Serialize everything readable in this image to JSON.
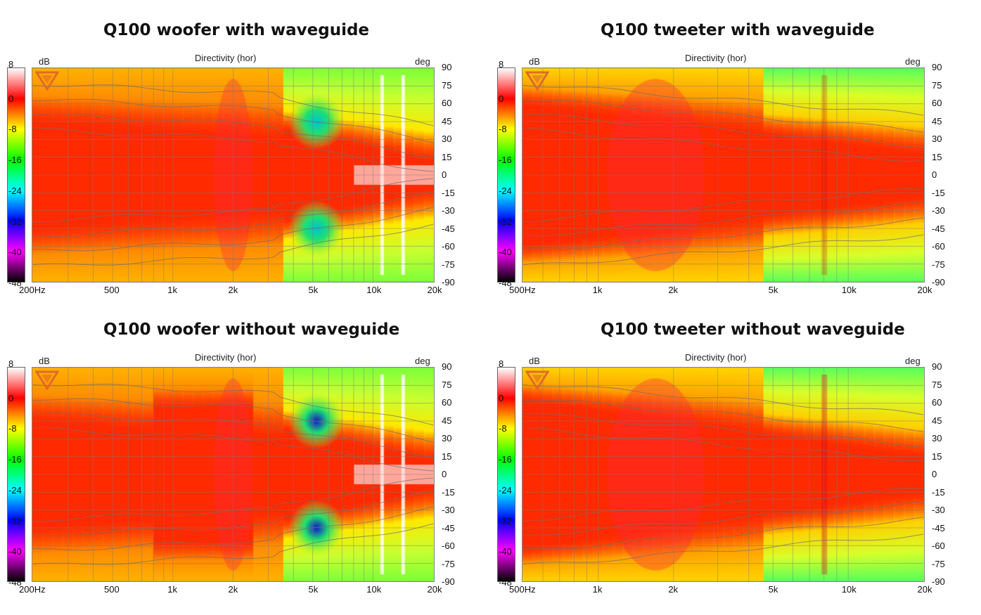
{
  "chart_data": [
    {
      "type": "heatmap",
      "title": "Q100 woofer with waveguide",
      "subtitle": "Directivity (hor)",
      "x_unit_label": "",
      "y_unit_label": "deg",
      "colorbar_label": "dB",
      "x_scale": "log",
      "x_range": [
        200,
        20000
      ],
      "x_ticks": [
        {
          "value": 200,
          "label": "200Hz"
        },
        {
          "value": 500,
          "label": "500"
        },
        {
          "value": 1000,
          "label": "1k"
        },
        {
          "value": 2000,
          "label": "2k"
        },
        {
          "value": 5000,
          "label": "5k"
        },
        {
          "value": 10000,
          "label": "10k"
        },
        {
          "value": 20000,
          "label": "20k"
        }
      ],
      "y_range": [
        -90,
        90
      ],
      "y_ticks": [
        "90",
        "75",
        "60",
        "45",
        "30",
        "15",
        "0",
        "-15",
        "-30",
        "-45",
        "-60",
        "-75",
        "-90"
      ],
      "colorbar_range": [
        -48,
        8
      ],
      "colorbar_ticks": [
        "8",
        "0",
        "-8",
        "-16",
        "-24",
        "-32",
        "-40",
        "-48"
      ],
      "grid": true,
      "driver": "woofer",
      "waveguide": true
    },
    {
      "type": "heatmap",
      "title": "Q100 tweeter with waveguide",
      "subtitle": "Directivity (hor)",
      "x_unit_label": "",
      "y_unit_label": "deg",
      "colorbar_label": "dB",
      "x_scale": "log",
      "x_range": [
        500,
        20000
      ],
      "x_ticks": [
        {
          "value": 500,
          "label": "500Hz"
        },
        {
          "value": 1000,
          "label": "1k"
        },
        {
          "value": 2000,
          "label": "2k"
        },
        {
          "value": 5000,
          "label": "5k"
        },
        {
          "value": 10000,
          "label": "10k"
        },
        {
          "value": 20000,
          "label": "20k"
        }
      ],
      "y_range": [
        -90,
        90
      ],
      "y_ticks": [
        "90",
        "75",
        "60",
        "45",
        "30",
        "15",
        "0",
        "-15",
        "-30",
        "-45",
        "-60",
        "-75",
        "-90"
      ],
      "colorbar_range": [
        -48,
        8
      ],
      "colorbar_ticks": [
        "8",
        "0",
        "-8",
        "-16",
        "-24",
        "-32",
        "-40",
        "-48"
      ],
      "grid": true,
      "driver": "tweeter",
      "waveguide": true
    },
    {
      "type": "heatmap",
      "title": "Q100 woofer without waveguide",
      "subtitle": "Directivity (hor)",
      "x_unit_label": "",
      "y_unit_label": "deg",
      "colorbar_label": "dB",
      "x_scale": "log",
      "x_range": [
        200,
        20000
      ],
      "x_ticks": [
        {
          "value": 200,
          "label": "200Hz"
        },
        {
          "value": 500,
          "label": "500"
        },
        {
          "value": 1000,
          "label": "1k"
        },
        {
          "value": 2000,
          "label": "2k"
        },
        {
          "value": 5000,
          "label": "5k"
        },
        {
          "value": 10000,
          "label": "10k"
        },
        {
          "value": 20000,
          "label": "20k"
        }
      ],
      "y_range": [
        -90,
        90
      ],
      "y_ticks": [
        "90",
        "75",
        "60",
        "45",
        "30",
        "15",
        "0",
        "-15",
        "-30",
        "-45",
        "-60",
        "-75",
        "-90"
      ],
      "colorbar_range": [
        -48,
        8
      ],
      "colorbar_ticks": [
        "8",
        "0",
        "-8",
        "-16",
        "-24",
        "-32",
        "-40",
        "-48"
      ],
      "grid": true,
      "driver": "woofer",
      "waveguide": false
    },
    {
      "type": "heatmap",
      "title": "Q100 tweeter without waveguide",
      "subtitle": "Directivity (hor)",
      "x_unit_label": "",
      "y_unit_label": "deg",
      "colorbar_label": "dB",
      "x_scale": "log",
      "x_range": [
        500,
        20000
      ],
      "x_ticks": [
        {
          "value": 500,
          "label": "500Hz"
        },
        {
          "value": 1000,
          "label": "1k"
        },
        {
          "value": 2000,
          "label": "2k"
        },
        {
          "value": 5000,
          "label": "5k"
        },
        {
          "value": 10000,
          "label": "10k"
        },
        {
          "value": 20000,
          "label": "20k"
        }
      ],
      "y_range": [
        -90,
        90
      ],
      "y_ticks": [
        "90",
        "75",
        "60",
        "45",
        "30",
        "15",
        "0",
        "-15",
        "-30",
        "-45",
        "-60",
        "-75",
        "-90"
      ],
      "colorbar_range": [
        -48,
        8
      ],
      "colorbar_ticks": [
        "8",
        "0",
        "-8",
        "-16",
        "-24",
        "-32",
        "-40",
        "-48"
      ],
      "grid": true,
      "driver": "tweeter",
      "waveguide": false
    }
  ],
  "colorbar_gradient": [
    "#ffffff",
    "#ff0000",
    "#ffff00",
    "#00ff00",
    "#00ffff",
    "#0000ff",
    "#ff00ff",
    "#000000"
  ]
}
